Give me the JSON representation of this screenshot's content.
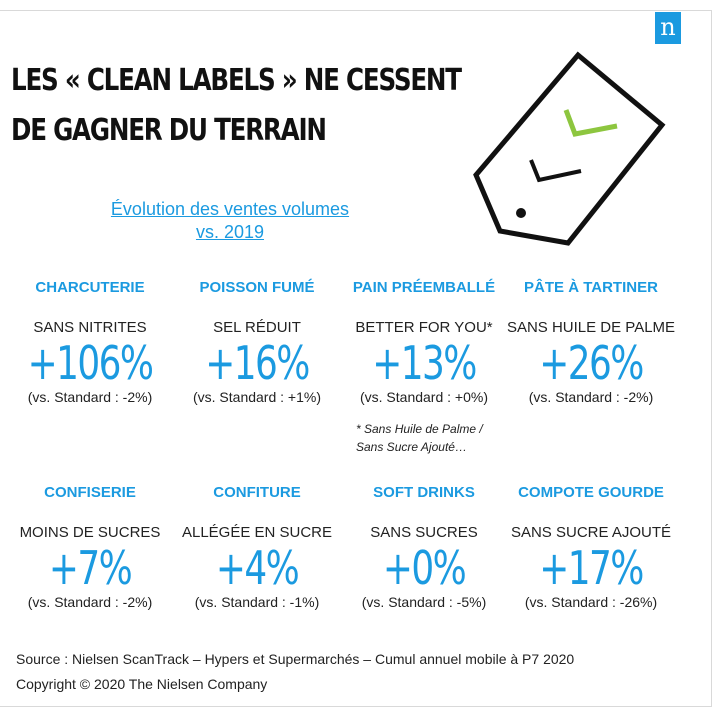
{
  "logo": {
    "letter": "n"
  },
  "title": {
    "line1": "LES « CLEAN LABELS » NE CESSENT",
    "line2": "DE GAGNER DU TERRAIN"
  },
  "subtitle": {
    "line1": "Évolution des ventes volumes",
    "line2": "vs. 2019"
  },
  "colors": {
    "accent": "#1b9ae0",
    "check": "#8dc63f",
    "text": "#222222"
  },
  "icon": "price-tag-check-icon",
  "items": [
    {
      "category": "CHARCUTERIE",
      "claim": "SANS NITRITES",
      "change": "+106%",
      "vs": "(vs. Standard : -2%)"
    },
    {
      "category": "POISSON FUMÉ",
      "claim": "SEL RÉDUIT",
      "change": "+16%",
      "vs": "(vs. Standard : +1%)"
    },
    {
      "category": "PAIN PRÉEMBALLÉ",
      "claim": "BETTER FOR YOU*",
      "change": "+13%",
      "vs": "(vs. Standard : +0%)"
    },
    {
      "category": "PÂTE À TARTINER",
      "claim": "SANS HUILE DE PALME",
      "change": "+26%",
      "vs": "(vs. Standard : -2%)"
    },
    {
      "category": "CONFISERIE",
      "claim": "MOINS DE SUCRES",
      "change": "+7%",
      "vs": "(vs. Standard : -2%)"
    },
    {
      "category": "CONFITURE",
      "claim": "ALLÉGÉE EN SUCRE",
      "change": "+4%",
      "vs": "(vs. Standard : -1%)"
    },
    {
      "category": "SOFT DRINKS",
      "claim": "SANS SUCRES",
      "change": "+0%",
      "vs": "(vs. Standard : -5%)"
    },
    {
      "category": "COMPOTE GOURDE",
      "claim": "SANS SUCRE AJOUTÉ",
      "change": "+17%",
      "vs": "(vs. Standard : -26%)"
    }
  ],
  "footnote": {
    "line1": "* Sans Huile de Palme /",
    "line2": "Sans Sucre Ajouté…"
  },
  "source": "Source : Nielsen ScanTrack – Hypers et Supermarchés – Cumul annuel mobile à P7 2020",
  "copyright": "Copyright © 2020 The Nielsen Company"
}
